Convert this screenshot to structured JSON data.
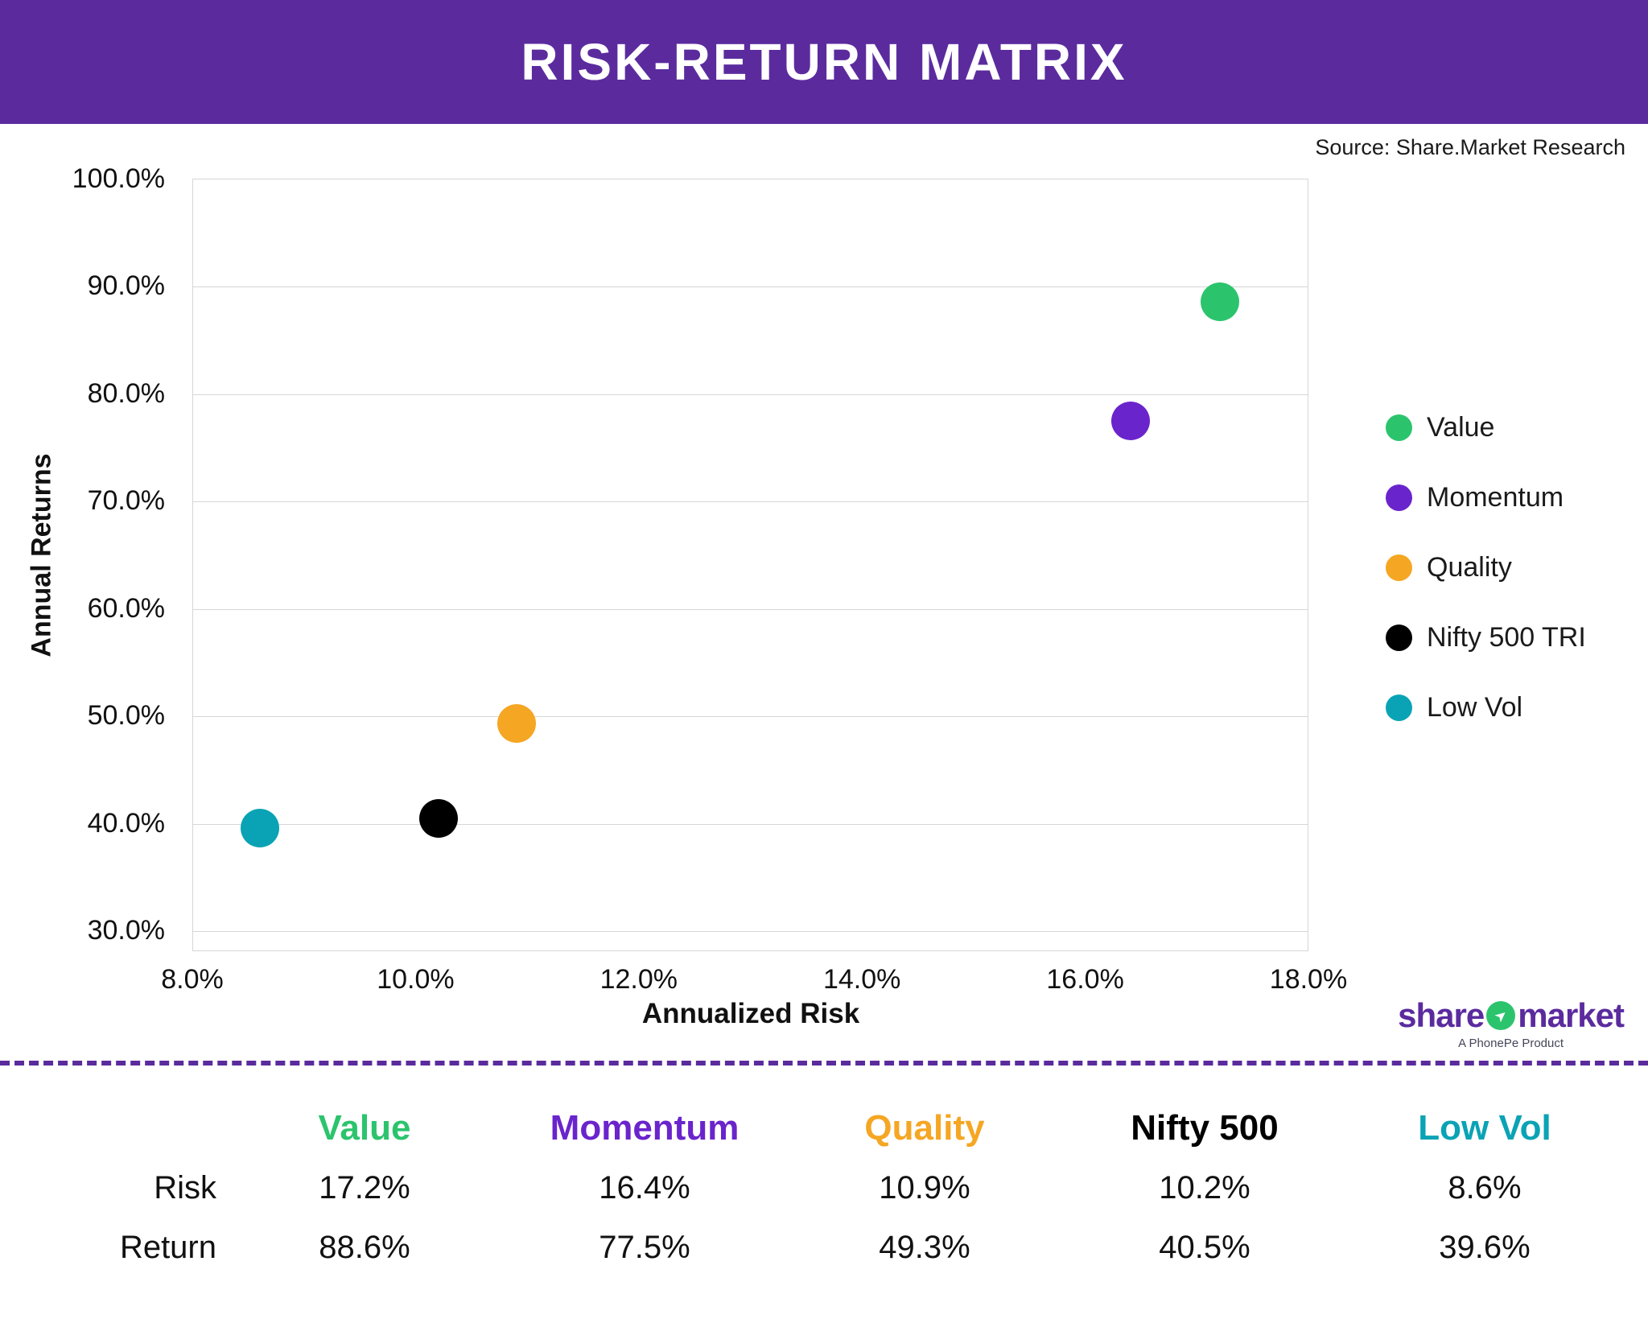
{
  "header": {
    "title": "RISK-RETURN MATRIX",
    "bg_color": "#5B2B9E"
  },
  "source": "Source: Share.Market Research",
  "chart_data": {
    "type": "scatter",
    "title": "RISK-RETURN MATRIX",
    "xlabel": "Annualized Risk",
    "ylabel": "Annual Returns",
    "xlim": [
      8,
      18
    ],
    "ylim": [
      30,
      100
    ],
    "grid": "horizontal",
    "legend_position": "right",
    "x_ticks": [
      {
        "value": 8,
        "label": "8.0%"
      },
      {
        "value": 10,
        "label": "10.0%"
      },
      {
        "value": 12,
        "label": "12.0%"
      },
      {
        "value": 14,
        "label": "14.0%"
      },
      {
        "value": 16,
        "label": "16.0%"
      },
      {
        "value": 18,
        "label": "18.0%"
      }
    ],
    "y_ticks": [
      {
        "value": 100,
        "label": "100.0%"
      },
      {
        "value": 90,
        "label": "90.0%"
      },
      {
        "value": 80,
        "label": "80.0%"
      },
      {
        "value": 70,
        "label": "70.0%"
      },
      {
        "value": 60,
        "label": "60.0%"
      },
      {
        "value": 50,
        "label": "50.0%"
      },
      {
        "value": 40,
        "label": "40.0%"
      },
      {
        "value": 30,
        "label": "30.0%"
      }
    ],
    "series": [
      {
        "name": "Value",
        "color": "#2BC46D",
        "risk": 17.2,
        "return": 88.6
      },
      {
        "name": "Momentum",
        "color": "#6A24CC",
        "risk": 16.4,
        "return": 77.5
      },
      {
        "name": "Quality",
        "color": "#F5A623",
        "risk": 10.9,
        "return": 49.3
      },
      {
        "name": "Nifty 500 TRI",
        "color": "#000000",
        "risk": 10.2,
        "return": 40.5
      },
      {
        "name": "Low Vol",
        "color": "#0AA3B5",
        "risk": 8.6,
        "return": 39.6
      }
    ]
  },
  "logo": {
    "part1": "share",
    "part2": "market",
    "icon_color": "#2BC46D",
    "text_color": "#5B2B9E",
    "sub": "A PhonePe Product",
    "icon_glyph": "➤"
  },
  "table": {
    "columns": [
      {
        "label": "Value",
        "color": "#2BC46D"
      },
      {
        "label": "Momentum",
        "color": "#6A24CC"
      },
      {
        "label": "Quality",
        "color": "#F5A623"
      },
      {
        "label": "Nifty 500",
        "color": "#000000"
      },
      {
        "label": "Low Vol",
        "color": "#0AA3B5"
      }
    ],
    "rows": [
      {
        "label": "Risk",
        "values": [
          "17.2%",
          "16.4%",
          "10.9%",
          "10.2%",
          "8.6%"
        ]
      },
      {
        "label": "Return",
        "values": [
          "88.6%",
          "77.5%",
          "49.3%",
          "40.5%",
          "39.6%"
        ]
      }
    ]
  }
}
